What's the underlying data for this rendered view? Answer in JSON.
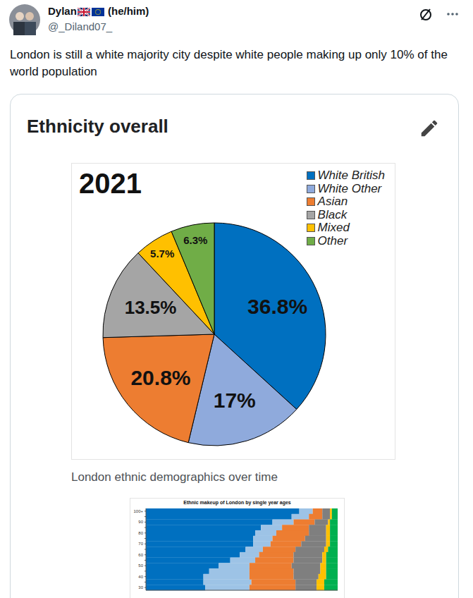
{
  "post": {
    "name": "Dylan",
    "pronouns": "(he/him)",
    "handle": "@_Diland07_",
    "text": "London is still a white majority city despite white people making up only 10% of the world population"
  },
  "card": {
    "title": "Ethnicity overall",
    "caption": "London ethnic demographics over time"
  },
  "chart_data": [
    {
      "type": "pie",
      "title": "2021",
      "categories": [
        "White British",
        "White Other",
        "Asian",
        "Black",
        "Mixed",
        "Other"
      ],
      "values": [
        36.8,
        17,
        20.8,
        13.5,
        5.7,
        6.3
      ],
      "value_labels": [
        "36.8%",
        "17%",
        "20.8%",
        "13.5%",
        "5.7%",
        "6.3%"
      ],
      "colors": [
        "#0070c0",
        "#8faadc",
        "#ed7d31",
        "#a5a5a5",
        "#ffc000",
        "#70ad47"
      ],
      "legend": "upper right",
      "data_labels": true
    },
    {
      "type": "bar",
      "orientation": "horizontal",
      "stacked": true,
      "title": "Ethnic makeup of London by single year ages",
      "categories": [
        "30",
        null,
        "40",
        null,
        "50",
        null,
        "60",
        null,
        "70",
        null,
        "80",
        null,
        "90",
        null,
        "100+"
      ],
      "series": [
        {
          "name": "White British",
          "color": "#0070c0",
          "values": [
            31,
            30,
            30,
            33,
            38,
            44,
            49,
            52,
            56,
            56,
            57,
            60,
            66,
            76,
            80
          ]
        },
        {
          "name": "White Other",
          "color": "#9dc3e6",
          "values": [
            23,
            25,
            24,
            21,
            16,
            13,
            10,
            9,
            9,
            10,
            11,
            11,
            11,
            9,
            7
          ]
        },
        {
          "name": "Asian",
          "color": "#ed7d31",
          "values": [
            24,
            23,
            23,
            23,
            22,
            20,
            18,
            17,
            16,
            17,
            17,
            14,
            11,
            7,
            5
          ]
        },
        {
          "name": "Black",
          "color": "#7f7f7f",
          "values": [
            11,
            11,
            13,
            14,
            15,
            15,
            15,
            15,
            13,
            11,
            9,
            9,
            7,
            4,
            4
          ]
        },
        {
          "name": "Mixed",
          "color": "#ffc000",
          "values": [
            4,
            4,
            4,
            3,
            3,
            2,
            2,
            2,
            2,
            2,
            2,
            2,
            1,
            1,
            1
          ]
        },
        {
          "name": "Other",
          "color": "#00b050",
          "values": [
            7,
            7,
            6,
            6,
            6,
            6,
            6,
            5,
            4,
            4,
            4,
            4,
            4,
            3,
            3
          ]
        }
      ],
      "xlim": [
        0,
        100
      ],
      "tick_labels": "y"
    }
  ]
}
